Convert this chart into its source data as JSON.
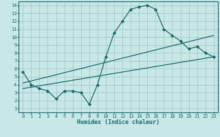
{
  "bg_color": "#c8e8e8",
  "grid_color": "#a8cccc",
  "line_color": "#1a6666",
  "xlabel": "Humidex (Indice chaleur)",
  "xlim": [
    -0.5,
    23.5
  ],
  "ylim": [
    0.5,
    14.5
  ],
  "xticks": [
    0,
    1,
    2,
    3,
    4,
    5,
    6,
    7,
    8,
    9,
    10,
    11,
    12,
    13,
    14,
    15,
    16,
    17,
    18,
    19,
    20,
    21,
    22,
    23
  ],
  "yticks": [
    1,
    2,
    3,
    4,
    5,
    6,
    7,
    8,
    9,
    10,
    11,
    12,
    13,
    14
  ],
  "main_curve_x": [
    0,
    1,
    2,
    3,
    4,
    5,
    6,
    7,
    8,
    9,
    10,
    11,
    12,
    13,
    14,
    15,
    16,
    17,
    18,
    19,
    20,
    21,
    22,
    23
  ],
  "main_curve_y": [
    5.6,
    4.0,
    3.5,
    3.2,
    2.2,
    3.2,
    3.2,
    3.0,
    1.5,
    4.0,
    7.5,
    10.5,
    12.0,
    13.5,
    13.8,
    14.0,
    13.5,
    11.0,
    10.2,
    9.5,
    8.5,
    8.8,
    8.0,
    7.5
  ],
  "reg_line1_x": [
    0,
    23
  ],
  "reg_line1_y": [
    3.5,
    7.5
  ],
  "reg_line2_x": [
    0,
    23
  ],
  "reg_line2_y": [
    4.2,
    10.2
  ],
  "marker": "D",
  "markersize": 2.2,
  "linewidth": 0.9,
  "tick_fontsize": 5.0,
  "xlabel_fontsize": 6.0
}
